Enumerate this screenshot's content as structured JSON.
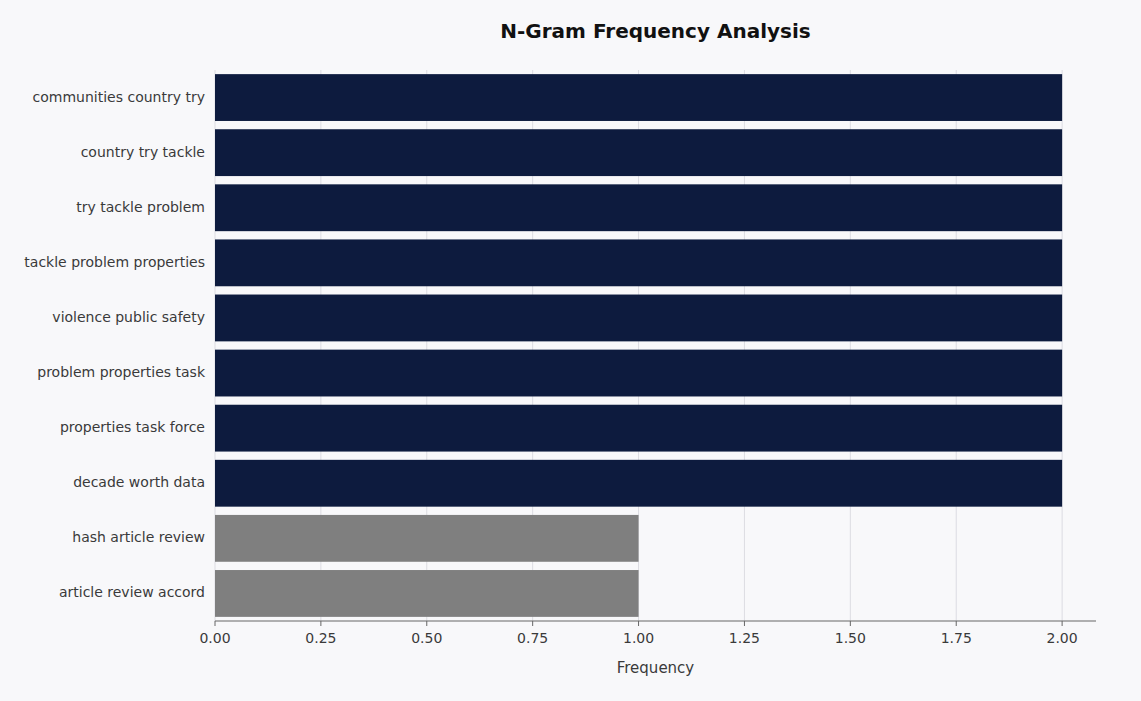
{
  "chart_data": {
    "type": "bar",
    "orientation": "horizontal",
    "title": "N-Gram Frequency Analysis",
    "xlabel": "Frequency",
    "categories": [
      "article review accord",
      "hash article review",
      "decade worth data",
      "properties task force",
      "problem properties task",
      "violence public safety",
      "tackle problem properties",
      "try tackle problem",
      "country try tackle",
      "communities country try"
    ],
    "values": [
      1,
      1,
      2,
      2,
      2,
      2,
      2,
      2,
      2,
      2
    ],
    "colors": [
      "#7f7f7f",
      "#7f7f7f",
      "#0d1b3e",
      "#0d1b3e",
      "#0d1b3e",
      "#0d1b3e",
      "#0d1b3e",
      "#0d1b3e",
      "#0d1b3e",
      "#0d1b3e"
    ],
    "xlim": [
      0,
      2.08
    ],
    "xticks": [
      {
        "value": 0.0,
        "label": "0.00"
      },
      0.25,
      {
        "value": 0.5,
        "label": "0.50"
      },
      0.75,
      {
        "value": 1.0,
        "label": "1.00"
      },
      1.25,
      {
        "value": 1.5,
        "label": "1.50"
      },
      1.75,
      {
        "value": 2.0,
        "label": "2.00"
      }
    ],
    "grid": true
  }
}
